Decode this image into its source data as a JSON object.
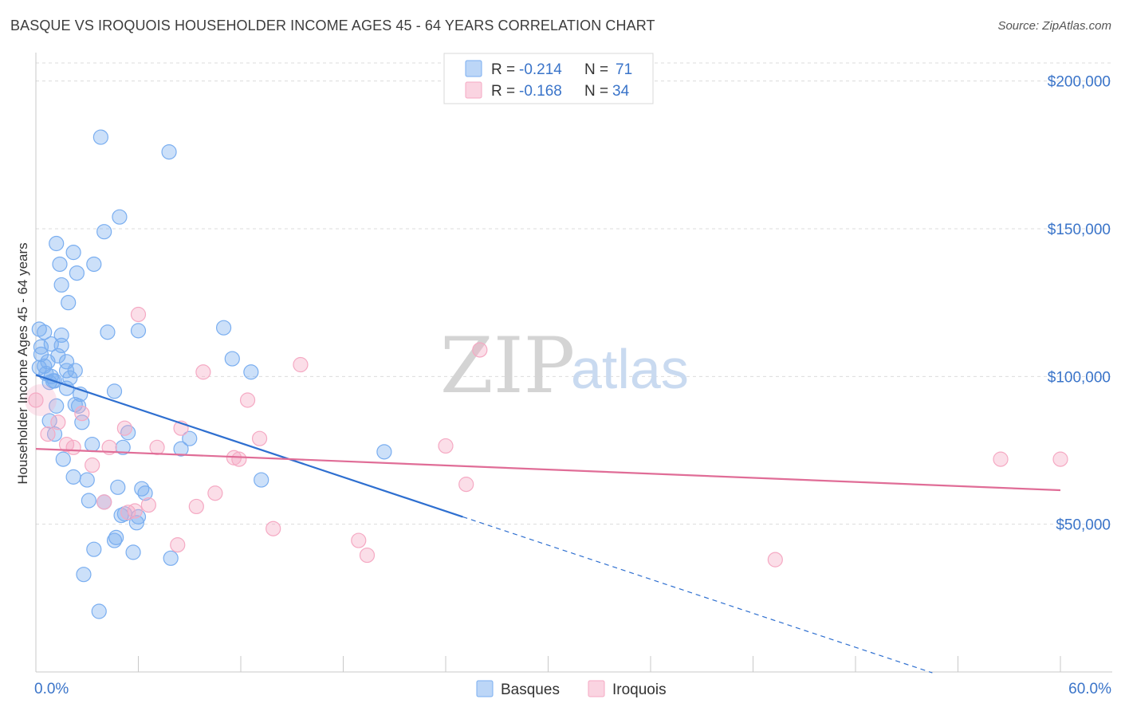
{
  "header": {
    "title": "BASQUE VS IROQUOIS HOUSEHOLDER INCOME AGES 45 - 64 YEARS CORRELATION CHART",
    "source": "Source: ZipAtlas.com"
  },
  "watermark": {
    "zip": "ZIP",
    "atlas": "atlas"
  },
  "legend": {
    "r_label": "R =",
    "n_label": "N =",
    "entries": [
      {
        "r": "-0.214",
        "n": "71"
      },
      {
        "r": "-0.168",
        "n": "34"
      }
    ]
  },
  "chart_data": {
    "type": "scatter",
    "title": "BASQUE VS IROQUOIS HOUSEHOLDER INCOME AGES 45 - 64 YEARS CORRELATION CHART",
    "xlabel": "",
    "ylabel": "Householder Income Ages 45 - 64 years",
    "xlim": [
      0,
      60
    ],
    "ylim": [
      0,
      208000
    ],
    "x_tick_labels": [
      "0.0%",
      "60.0%"
    ],
    "y_ticks": [
      50000,
      100000,
      150000,
      200000
    ],
    "y_tick_labels": [
      "$50,000",
      "$100,000",
      "$150,000",
      "$200,000"
    ],
    "grid": true,
    "legend_position": "top-center",
    "series": [
      {
        "name": "Basques",
        "color": "#7aaef0",
        "line_color": "#2e6fd0",
        "r": -0.214,
        "n": 71,
        "trend": {
          "x0": 0,
          "y0": 100500,
          "x1": 25,
          "y1": 52500,
          "dash_x1": 52.5
        },
        "points": [
          [
            3.8,
            181000
          ],
          [
            7.8,
            176000
          ],
          [
            4.9,
            154000
          ],
          [
            4.0,
            149000
          ],
          [
            1.2,
            145000
          ],
          [
            2.2,
            142000
          ],
          [
            1.4,
            138000
          ],
          [
            3.4,
            138000
          ],
          [
            2.4,
            135000
          ],
          [
            1.5,
            131000
          ],
          [
            1.9,
            125000
          ],
          [
            0.2,
            116000
          ],
          [
            0.5,
            115000
          ],
          [
            4.2,
            115000
          ],
          [
            6.0,
            115500
          ],
          [
            11.0,
            116500
          ],
          [
            1.5,
            114000
          ],
          [
            0.9,
            111000
          ],
          [
            0.3,
            110000
          ],
          [
            1.5,
            110500
          ],
          [
            0.3,
            107500
          ],
          [
            1.3,
            107000
          ],
          [
            0.7,
            105000
          ],
          [
            1.8,
            105000
          ],
          [
            11.5,
            106000
          ],
          [
            0.5,
            103500
          ],
          [
            0.2,
            103000
          ],
          [
            1.8,
            102000
          ],
          [
            2.3,
            102000
          ],
          [
            12.6,
            101500
          ],
          [
            0.6,
            101000
          ],
          [
            0.9,
            100000
          ],
          [
            2.0,
            99500
          ],
          [
            1.1,
            98500
          ],
          [
            0.8,
            98000
          ],
          [
            1.8,
            96000
          ],
          [
            4.6,
            95000
          ],
          [
            2.6,
            94000
          ],
          [
            1.2,
            90000
          ],
          [
            2.3,
            90500
          ],
          [
            2.5,
            90000
          ],
          [
            0.8,
            85000
          ],
          [
            2.7,
            84500
          ],
          [
            5.4,
            81000
          ],
          [
            1.1,
            80500
          ],
          [
            9.0,
            79000
          ],
          [
            3.3,
            77000
          ],
          [
            5.1,
            76000
          ],
          [
            8.5,
            75500
          ],
          [
            20.4,
            74500
          ],
          [
            1.6,
            72000
          ],
          [
            2.2,
            66000
          ],
          [
            13.2,
            65000
          ],
          [
            3.0,
            65000
          ],
          [
            4.8,
            62500
          ],
          [
            6.2,
            62000
          ],
          [
            6.4,
            60500
          ],
          [
            3.1,
            58000
          ],
          [
            4.0,
            57500
          ],
          [
            5.2,
            53500
          ],
          [
            5.0,
            53000
          ],
          [
            6.0,
            52500
          ],
          [
            5.9,
            50500
          ],
          [
            4.7,
            45500
          ],
          [
            4.6,
            44500
          ],
          [
            3.4,
            41500
          ],
          [
            5.7,
            40500
          ],
          [
            7.9,
            38500
          ],
          [
            2.8,
            33000
          ],
          [
            3.7,
            20500
          ],
          [
            1.0,
            98500
          ]
        ]
      },
      {
        "name": "Iroquois",
        "color": "#f5a9c3",
        "line_color": "#e06d97",
        "r": -0.168,
        "n": 34,
        "trend": {
          "x0": 0,
          "y0": 75500,
          "x1": 60,
          "y1": 61500
        },
        "points": [
          [
            0.0,
            92000
          ],
          [
            6.0,
            121000
          ],
          [
            26.0,
            109000
          ],
          [
            15.5,
            104000
          ],
          [
            9.8,
            101500
          ],
          [
            12.4,
            92000
          ],
          [
            2.7,
            87500
          ],
          [
            1.3,
            84500
          ],
          [
            0.7,
            80500
          ],
          [
            5.2,
            82500
          ],
          [
            8.5,
            82500
          ],
          [
            13.1,
            79000
          ],
          [
            24.0,
            76500
          ],
          [
            1.8,
            77000
          ],
          [
            2.2,
            76000
          ],
          [
            4.3,
            76000
          ],
          [
            7.1,
            76000
          ],
          [
            11.6,
            72500
          ],
          [
            11.9,
            72000
          ],
          [
            3.3,
            70000
          ],
          [
            56.5,
            72000
          ],
          [
            60.0,
            72000
          ],
          [
            25.2,
            63500
          ],
          [
            10.5,
            60500
          ],
          [
            4.0,
            57500
          ],
          [
            5.8,
            54500
          ],
          [
            6.6,
            56500
          ],
          [
            9.4,
            56000
          ],
          [
            5.4,
            54000
          ],
          [
            13.9,
            48500
          ],
          [
            18.9,
            44500
          ],
          [
            8.3,
            43000
          ],
          [
            19.4,
            39500
          ],
          [
            43.3,
            38000
          ]
        ]
      }
    ]
  }
}
